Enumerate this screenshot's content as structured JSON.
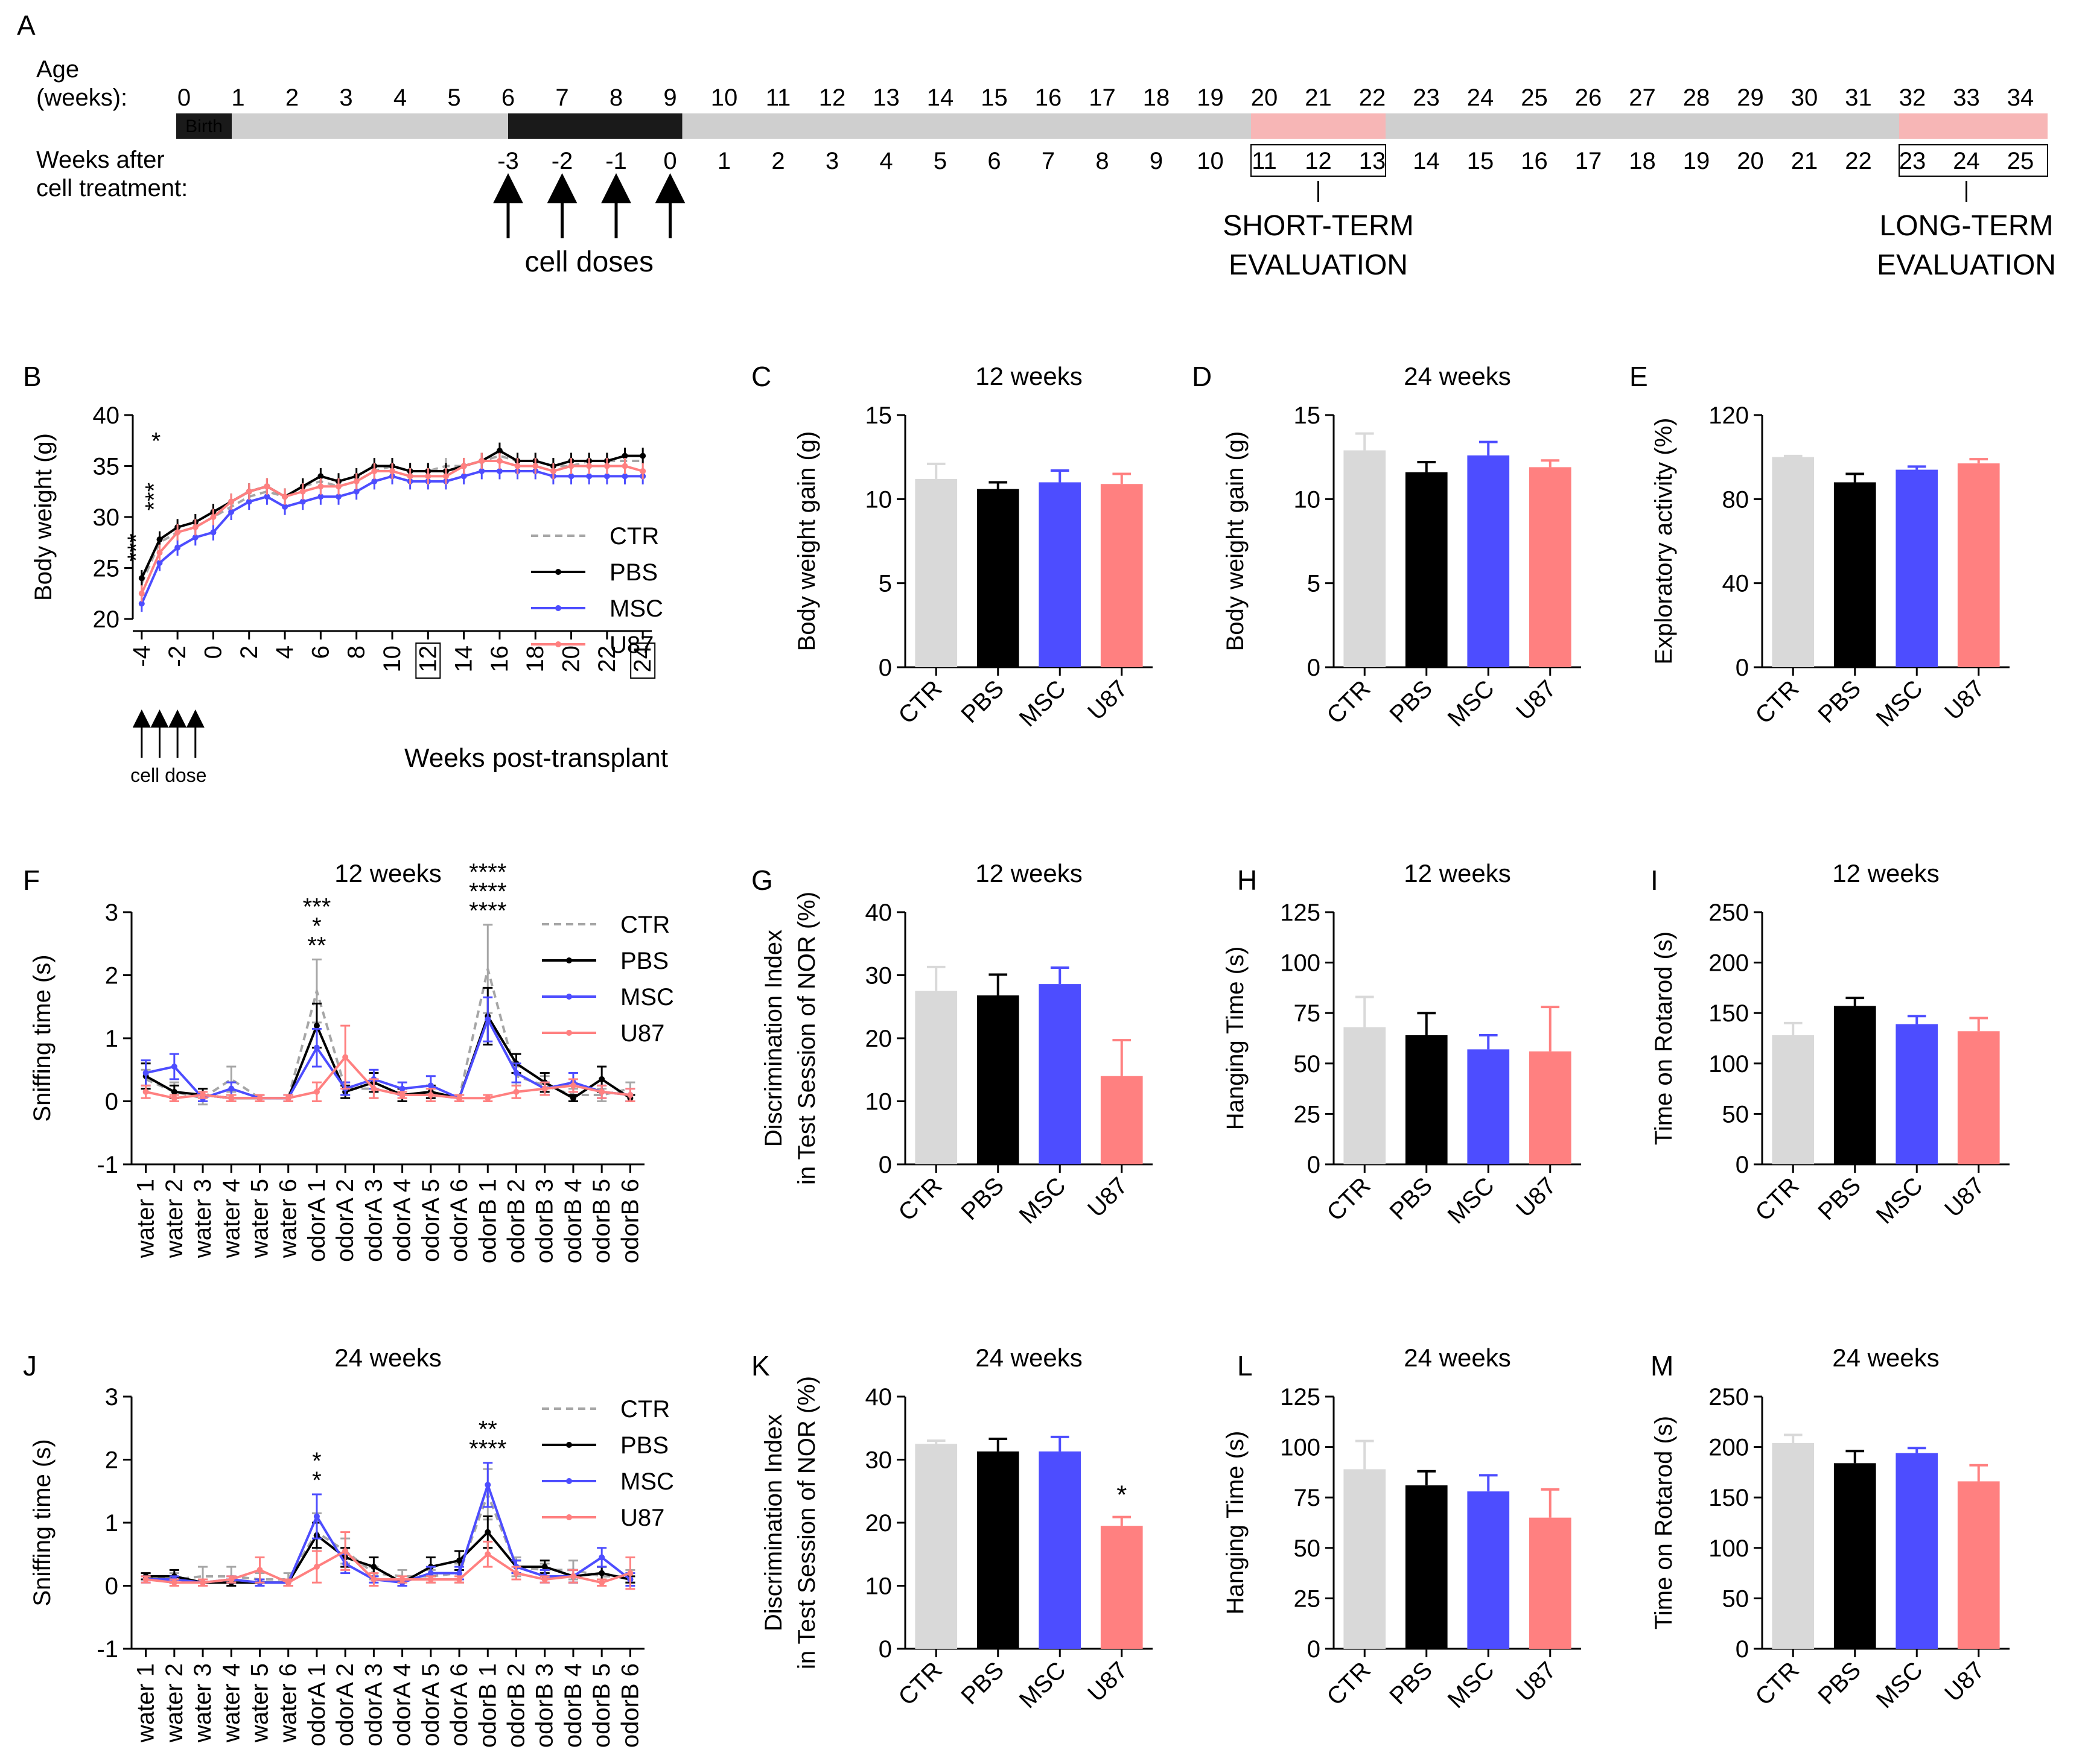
{
  "colors": {
    "CTR": "#a6a6a6",
    "CTR_bar": "#d9d9d9",
    "PBS": "#000000",
    "MSC": "#4d4dff",
    "U87": "#ff8080",
    "timeline_bar": "#cfcfcf",
    "timeline_treat": "#1a1a1a",
    "timeline_eval": "#f7b6b6",
    "red": "#e8191e"
  },
  "timeline": {
    "panel_letter": "A",
    "age_label": "Age",
    "age_sub": "(weeks):",
    "ages": [
      "0",
      "1",
      "2",
      "3",
      "4",
      "5",
      "6",
      "7",
      "8",
      "9",
      "10",
      "11",
      "12",
      "13",
      "14",
      "15",
      "16",
      "17",
      "18",
      "19",
      "20",
      "21",
      "22",
      "23",
      "24",
      "25",
      "26",
      "27",
      "28",
      "29",
      "30",
      "31",
      "32",
      "33",
      "34"
    ],
    "birth": "Birth",
    "after_label": "Weeks after",
    "after_sub": "cell treatment:",
    "after_weeks": [
      "-3",
      "-2",
      "-1",
      "0",
      "1",
      "2",
      "3",
      "4",
      "5",
      "6",
      "7",
      "8",
      "9",
      "10",
      "11",
      "12",
      "13",
      "14",
      "15",
      "16",
      "17",
      "18",
      "19",
      "20",
      "21",
      "22",
      "23",
      "24",
      "25"
    ],
    "red_weeks": [
      "-3",
      "-2",
      "-1",
      "0",
      "12",
      "24"
    ],
    "cell_doses": "cell doses",
    "short_1": "SHORT-TERM",
    "short_2": "EVALUATION",
    "long_1": "LONG-TERM",
    "long_2": "EVALUATION"
  },
  "legend": [
    "CTR",
    "PBS",
    "MSC",
    "U87"
  ],
  "chart_data": [
    {
      "panel": "B",
      "type": "line",
      "title": "",
      "xlabel": "Weeks post-transplant",
      "ylabel": "Body weight (g)",
      "ylim": [
        20,
        40
      ],
      "yticks": [
        "20",
        "25",
        "30",
        "35",
        "40"
      ],
      "xticks": [
        "-4",
        "-2",
        "0",
        "2",
        "4",
        "6",
        "8",
        "10",
        "12",
        "14",
        "16",
        "18",
        "20",
        "22",
        "24"
      ],
      "boxed_ticks": [
        "12",
        "24"
      ],
      "cell_dose_label": "cell dose",
      "x": [
        -4,
        -3,
        -2,
        -1,
        0,
        1,
        2,
        3,
        4,
        5,
        6,
        7,
        8,
        9,
        10,
        11,
        12,
        13,
        14,
        15,
        16,
        17,
        18,
        19,
        20,
        21,
        22,
        23,
        24
      ],
      "series": [
        {
          "name": "CTR",
          "values": [
            23.5,
            27.5,
            28.5,
            29,
            30,
            31,
            32,
            32.5,
            32,
            33,
            33.5,
            33,
            33.5,
            34.5,
            35,
            34.5,
            34.5,
            35,
            35,
            35.5,
            36,
            35.5,
            35.5,
            35,
            35,
            35.5,
            35.5,
            35.5,
            35.5
          ]
        },
        {
          "name": "PBS",
          "values": [
            24,
            27.8,
            29,
            29.5,
            30.5,
            31.5,
            32.5,
            33,
            32,
            33,
            34,
            33.5,
            34,
            35,
            35,
            34.5,
            34.5,
            34.5,
            35,
            35.5,
            36.5,
            35.5,
            35.5,
            35,
            35.5,
            35.5,
            35.5,
            36,
            36
          ]
        },
        {
          "name": "MSC",
          "values": [
            21.5,
            25.5,
            27,
            28,
            28.5,
            30.5,
            31.5,
            32,
            31,
            31.5,
            32,
            32,
            32.5,
            33.5,
            34,
            33.5,
            33.5,
            33.5,
            34,
            34.5,
            34.5,
            34.5,
            34.5,
            34,
            34,
            34,
            34,
            34,
            34
          ]
        },
        {
          "name": "U87",
          "values": [
            22.5,
            26.5,
            28.5,
            29,
            30,
            31.5,
            32.5,
            33,
            32,
            32.5,
            33,
            33,
            33.5,
            34.5,
            34.5,
            34,
            34,
            34,
            35,
            35.5,
            35.5,
            35,
            35,
            34.5,
            35,
            35,
            35,
            35,
            34.5
          ]
        }
      ],
      "sig": [
        {
          "text": "*",
          "color": "U87"
        },
        {
          "text": "***",
          "color": "PBS"
        },
        {
          "text": "***",
          "color": "PBS"
        }
      ]
    },
    {
      "panel": "C",
      "type": "bar",
      "title": "12 weeks",
      "ylabel": "Body weight gain (g)",
      "categories": [
        "CTR",
        "PBS",
        "MSC",
        "U87"
      ],
      "values": [
        11.2,
        10.6,
        11.0,
        10.9
      ],
      "errors": [
        0.9,
        0.4,
        0.7,
        0.6
      ],
      "ylim": [
        0,
        15
      ],
      "yticks": [
        "0",
        "5",
        "10",
        "15"
      ]
    },
    {
      "panel": "D",
      "type": "bar",
      "title": "24 weeks",
      "ylabel": "Body weight gain (g)",
      "categories": [
        "CTR",
        "PBS",
        "MSC",
        "U87"
      ],
      "values": [
        12.9,
        11.6,
        12.6,
        11.9
      ],
      "errors": [
        1.0,
        0.6,
        0.8,
        0.4
      ],
      "ylim": [
        0,
        15
      ],
      "yticks": [
        "0",
        "5",
        "10",
        "15"
      ]
    },
    {
      "panel": "E",
      "type": "bar",
      "title": "",
      "ylabel": "Exploratory activity (%)",
      "categories": [
        "CTR",
        "PBS",
        "MSC",
        "U87"
      ],
      "values": [
        100,
        88,
        94,
        97
      ],
      "errors": [
        0.5,
        4,
        1.5,
        2
      ],
      "ylim": [
        0,
        120
      ],
      "yticks": [
        "0",
        "40",
        "80",
        "120"
      ]
    },
    {
      "panel": "F",
      "type": "line",
      "title": "12 weeks",
      "ylabel": "Sniffing time (s)",
      "ylim": [
        -1,
        3
      ],
      "yticks": [
        "-1",
        "0",
        "1",
        "2",
        "3"
      ],
      "categories": [
        "water 1",
        "water 2",
        "water 3",
        "water 4",
        "water 5",
        "water 6",
        "odorA 1",
        "odorA 2",
        "odorA 3",
        "odorA 4",
        "odorA 5",
        "odorA 6",
        "odorB 1",
        "odorB 2",
        "odorB 3",
        "odorB 4",
        "odorB 5",
        "odorB 6"
      ],
      "series": [
        {
          "name": "CTR",
          "values": [
            0.35,
            0.15,
            0.05,
            0.35,
            0.05,
            0.05,
            1.75,
            0.2,
            0.2,
            0.1,
            0.1,
            0.05,
            2.1,
            0.4,
            0.25,
            0.1,
            0.1,
            0.2
          ],
          "errors": [
            0.15,
            0.15,
            0.1,
            0.2,
            0.05,
            0.05,
            0.5,
            0.1,
            0.15,
            0.1,
            0.1,
            0.05,
            0.7,
            0.15,
            0.15,
            0.1,
            0.1,
            0.1
          ]
        },
        {
          "name": "PBS",
          "values": [
            0.4,
            0.15,
            0.1,
            0.05,
            0.05,
            0.05,
            1.2,
            0.15,
            0.3,
            0.1,
            0.15,
            0.05,
            1.35,
            0.6,
            0.3,
            0.05,
            0.35,
            0.05
          ],
          "errors": [
            0.2,
            0.1,
            0.1,
            0.05,
            0.05,
            0.05,
            0.35,
            0.1,
            0.15,
            0.1,
            0.1,
            0.05,
            0.45,
            0.15,
            0.15,
            0.05,
            0.2,
            0.05
          ]
        },
        {
          "name": "MSC",
          "values": [
            0.45,
            0.55,
            0.05,
            0.2,
            0.05,
            0.05,
            0.85,
            0.2,
            0.35,
            0.2,
            0.25,
            0.05,
            1.3,
            0.45,
            0.2,
            0.3,
            0.15,
            0.1
          ],
          "errors": [
            0.2,
            0.2,
            0.05,
            0.1,
            0.05,
            0.05,
            0.3,
            0.1,
            0.15,
            0.1,
            0.15,
            0.05,
            0.35,
            0.15,
            0.1,
            0.15,
            0.1,
            0.1
          ]
        },
        {
          "name": "U87",
          "values": [
            0.15,
            0.05,
            0.1,
            0.05,
            0.05,
            0.05,
            0.15,
            0.7,
            0.2,
            0.1,
            0.1,
            0.05,
            0.05,
            0.15,
            0.2,
            0.25,
            0.15,
            0.1
          ],
          "errors": [
            0.1,
            0.05,
            0.05,
            0.05,
            0.05,
            0.05,
            0.15,
            0.5,
            0.15,
            0.05,
            0.1,
            0.05,
            0.05,
            0.1,
            0.1,
            0.1,
            0.1,
            0.1
          ]
        }
      ],
      "sig": [
        {
          "text": "***",
          "color": "CTR",
          "at": 6,
          "row": 0
        },
        {
          "text": "*",
          "color": "PBS",
          "at": 6,
          "row": 1
        },
        {
          "text": "**",
          "color": "MSC",
          "at": 6,
          "row": 2
        },
        {
          "text": "****",
          "color": "CTR",
          "at": 12,
          "row": 0
        },
        {
          "text": "****",
          "color": "PBS",
          "at": 12,
          "row": 1
        },
        {
          "text": "****",
          "color": "MSC",
          "at": 12,
          "row": 2
        }
      ]
    },
    {
      "panel": "G",
      "type": "bar",
      "title": "12 weeks",
      "ylabel1": "Discrimination Index",
      "ylabel2": "in Test Session of NOR (%)",
      "categories": [
        "CTR",
        "PBS",
        "MSC",
        "U87"
      ],
      "values": [
        27.5,
        26.8,
        28.6,
        14.0
      ],
      "errors": [
        3.8,
        3.3,
        2.6,
        5.7
      ],
      "ylim": [
        0,
        40
      ],
      "yticks": [
        "0",
        "10",
        "20",
        "30",
        "40"
      ]
    },
    {
      "panel": "H",
      "type": "bar",
      "title": "12 weeks",
      "ylabel": "Hanging Time (s)",
      "categories": [
        "CTR",
        "PBS",
        "MSC",
        "U87"
      ],
      "values": [
        68,
        64,
        57,
        56
      ],
      "errors": [
        15,
        11,
        7,
        22
      ],
      "ylim": [
        0,
        125
      ],
      "yticks": [
        "0",
        "25",
        "50",
        "75",
        "100",
        "125"
      ]
    },
    {
      "panel": "I",
      "type": "bar",
      "title": "12 weeks",
      "ylabel": "Time on Rotarod (s)",
      "categories": [
        "CTR",
        "PBS",
        "MSC",
        "U87"
      ],
      "values": [
        128,
        157,
        139,
        132
      ],
      "errors": [
        12,
        8,
        8,
        13
      ],
      "ylim": [
        0,
        250
      ],
      "yticks": [
        "0",
        "50",
        "100",
        "150",
        "200",
        "250"
      ]
    },
    {
      "panel": "J",
      "type": "line",
      "title": "24 weeks",
      "ylabel": "Sniffing time (s)",
      "ylim": [
        -1,
        3
      ],
      "yticks": [
        "-1",
        "0",
        "1",
        "2",
        "3"
      ],
      "categories": [
        "water 1",
        "water 2",
        "water 3",
        "water 4",
        "water 5",
        "water 6",
        "odorA 1",
        "odorA 2",
        "odorA 3",
        "odorA 4",
        "odorA 5",
        "odorA 6",
        "odorB 1",
        "odorB 2",
        "odorB 3",
        "odorB 4",
        "odorB 5",
        "odorB 6"
      ],
      "series": [
        {
          "name": "CTR",
          "values": [
            0.15,
            0.1,
            0.15,
            0.15,
            0.1,
            0.1,
            0.85,
            0.55,
            0.2,
            0.15,
            0.15,
            0.2,
            1.45,
            0.3,
            0.25,
            0.25,
            0.15,
            0.15
          ],
          "errors": [
            0.05,
            0.1,
            0.15,
            0.15,
            0.1,
            0.1,
            0.3,
            0.2,
            0.1,
            0.1,
            0.1,
            0.15,
            0.4,
            0.15,
            0.1,
            0.15,
            0.15,
            0.1
          ]
        },
        {
          "name": "PBS",
          "values": [
            0.15,
            0.15,
            0.05,
            0.05,
            0.05,
            0.05,
            0.8,
            0.45,
            0.3,
            0.05,
            0.3,
            0.4,
            0.85,
            0.3,
            0.3,
            0.15,
            0.2,
            0.1
          ],
          "errors": [
            0.05,
            0.1,
            0.05,
            0.05,
            0.05,
            0.05,
            0.2,
            0.15,
            0.15,
            0.05,
            0.15,
            0.15,
            0.25,
            0.1,
            0.1,
            0.1,
            0.1,
            0.05
          ]
        },
        {
          "name": "MSC",
          "values": [
            0.1,
            0.1,
            0.05,
            0.1,
            0.05,
            0.05,
            1.1,
            0.35,
            0.1,
            0.05,
            0.2,
            0.2,
            1.6,
            0.3,
            0.15,
            0.15,
            0.45,
            0.1
          ],
          "errors": [
            0.05,
            0.05,
            0.05,
            0.05,
            0.05,
            0.05,
            0.35,
            0.15,
            0.05,
            0.05,
            0.1,
            0.1,
            0.35,
            0.1,
            0.1,
            0.1,
            0.15,
            0.1
          ]
        },
        {
          "name": "U87",
          "values": [
            0.1,
            0.05,
            0.05,
            0.1,
            0.25,
            0.05,
            0.3,
            0.55,
            0.1,
            0.1,
            0.1,
            0.1,
            0.5,
            0.2,
            0.1,
            0.15,
            0.05,
            0.2
          ],
          "errors": [
            0.05,
            0.05,
            0.05,
            0.05,
            0.2,
            0.05,
            0.25,
            0.3,
            0.1,
            0.05,
            0.05,
            0.05,
            0.2,
            0.1,
            0.05,
            0.1,
            0.05,
            0.25
          ]
        }
      ],
      "sig": [
        {
          "text": "*",
          "color": "MSC",
          "at": 6,
          "row": 0
        },
        {
          "text": "*",
          "color": "PBS",
          "at": 6,
          "row": 1
        },
        {
          "text": "**",
          "color": "CTR",
          "at": 12,
          "row": 0
        },
        {
          "text": "****",
          "color": "MSC",
          "at": 12,
          "row": 1
        }
      ]
    },
    {
      "panel": "K",
      "type": "bar",
      "title": "24 weeks",
      "ylabel1": "Discrimination Index",
      "ylabel2": "in Test Session of NOR (%)",
      "categories": [
        "CTR",
        "PBS",
        "MSC",
        "U87"
      ],
      "values": [
        32.5,
        31.3,
        31.3,
        19.5
      ],
      "errors": [
        0.5,
        2.0,
        2.3,
        1.4
      ],
      "ylim": [
        0,
        40
      ],
      "yticks": [
        "0",
        "10",
        "20",
        "30",
        "40"
      ],
      "bar_sig": [
        {
          "index": 3,
          "text": "*"
        }
      ]
    },
    {
      "panel": "L",
      "type": "bar",
      "title": "24 weeks",
      "ylabel": "Hanging Time (s)",
      "categories": [
        "CTR",
        "PBS",
        "MSC",
        "U87"
      ],
      "values": [
        89,
        81,
        78,
        65
      ],
      "errors": [
        14,
        7,
        8,
        14
      ],
      "ylim": [
        0,
        125
      ],
      "yticks": [
        "0",
        "25",
        "50",
        "75",
        "100",
        "125"
      ]
    },
    {
      "panel": "M",
      "type": "bar",
      "title": "24 weeks",
      "ylabel": "Time on Rotarod (s)",
      "categories": [
        "CTR",
        "PBS",
        "MSC",
        "U87"
      ],
      "values": [
        204,
        184,
        194,
        166
      ],
      "errors": [
        8,
        12,
        5,
        16
      ],
      "ylim": [
        0,
        250
      ],
      "yticks": [
        "0",
        "50",
        "100",
        "150",
        "200",
        "250"
      ]
    }
  ]
}
